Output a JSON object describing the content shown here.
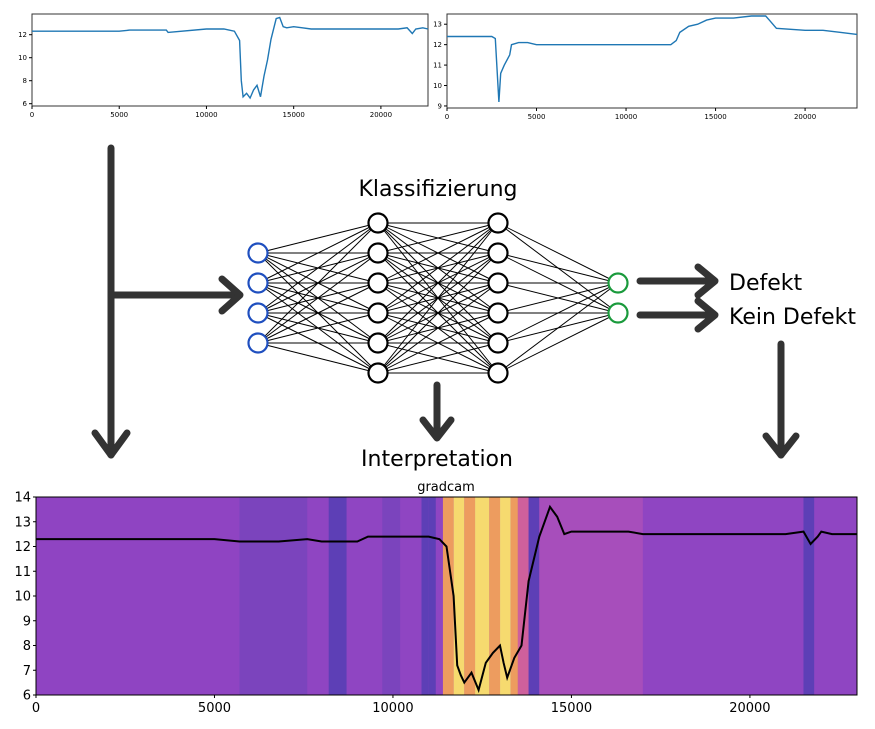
{
  "labels": {
    "classification": "Klassifizierung",
    "interpretation": "Interpretation",
    "defect": "Defekt",
    "no_defect": "Kein Defekt",
    "gradcam_title": "gradcam"
  },
  "network": {
    "input_nodes": 4,
    "hidden_layers": [
      6,
      6
    ],
    "output_nodes": 2,
    "input_color": "#1f4fbf",
    "output_color": "#1a9a3c",
    "hidden_color": "#000000"
  },
  "colors": {
    "series_line": "#1f77b4",
    "arrow": "#333333",
    "gradcam_base": "#8f45c2",
    "gradcam_hot": "#fce36a",
    "gradcam_warm": "#f2a15a",
    "gradcam_cool": "#5b3fb5"
  },
  "chart_data": [
    {
      "type": "line",
      "name_in_image": "",
      "x_ticks": [
        "0",
        "5000",
        "10000",
        "15000",
        "20000"
      ],
      "y_ticks": [
        "6",
        "8",
        "10",
        "12"
      ],
      "xlim": [
        0,
        22700
      ],
      "ylim": [
        5.8,
        13.8
      ],
      "x": [
        0,
        5000,
        5600,
        7700,
        7800,
        10000,
        11000,
        11600,
        11900,
        12000,
        12100,
        12300,
        12500,
        12700,
        12900,
        13100,
        13300,
        13500,
        13700,
        14000,
        14200,
        14400,
        14600,
        15000,
        15500,
        16000,
        17000,
        18000,
        19000,
        20000,
        21000,
        21500,
        21800,
        22000,
        22400,
        22700
      ],
      "y": [
        12.3,
        12.3,
        12.4,
        12.4,
        12.2,
        12.5,
        12.5,
        12.3,
        11.5,
        8.0,
        6.6,
        6.9,
        6.5,
        7.2,
        7.6,
        6.6,
        8.4,
        9.8,
        11.6,
        13.4,
        13.5,
        12.7,
        12.6,
        12.7,
        12.6,
        12.5,
        12.5,
        12.5,
        12.5,
        12.5,
        12.5,
        12.6,
        12.1,
        12.5,
        12.6,
        12.5
      ]
    },
    {
      "type": "line",
      "name_in_image": "",
      "x_ticks": [
        "0",
        "5000",
        "10000",
        "15000",
        "20000"
      ],
      "y_ticks": [
        "9",
        "10",
        "11",
        "12",
        "13"
      ],
      "xlim": [
        0,
        22900
      ],
      "ylim": [
        8.9,
        13.5
      ],
      "x": [
        0,
        2500,
        2700,
        2900,
        3000,
        3200,
        3500,
        3600,
        4000,
        4500,
        5000,
        8000,
        10000,
        12500,
        12800,
        13000,
        13500,
        14000,
        14500,
        15000,
        16000,
        17000,
        17800,
        18000,
        18400,
        20000,
        21000,
        22000,
        22900
      ],
      "y": [
        12.4,
        12.4,
        12.3,
        9.2,
        10.6,
        11.0,
        11.5,
        12.0,
        12.1,
        12.1,
        12.0,
        12.0,
        12.0,
        12.0,
        12.2,
        12.6,
        12.9,
        13.0,
        13.2,
        13.3,
        13.3,
        13.4,
        13.4,
        13.2,
        12.8,
        12.7,
        12.7,
        12.6,
        12.5
      ]
    },
    {
      "type": "line",
      "title": "gradcam",
      "x_ticks": [
        "0",
        "5000",
        "10000",
        "15000",
        "20000"
      ],
      "y_ticks": [
        "6",
        "7",
        "8",
        "9",
        "10",
        "11",
        "12",
        "13",
        "14"
      ],
      "xlim": [
        0,
        23000
      ],
      "ylim": [
        6,
        14
      ],
      "x": [
        0,
        5000,
        5700,
        6800,
        7600,
        8000,
        8500,
        9000,
        9300,
        10000,
        10500,
        11000,
        11300,
        11500,
        11700,
        11800,
        11900,
        12000,
        12200,
        12400,
        12600,
        12800,
        13000,
        13100,
        13200,
        13400,
        13600,
        13800,
        14100,
        14400,
        14600,
        14800,
        15000,
        15500,
        16000,
        16600,
        17000,
        18000,
        19000,
        20000,
        21000,
        21500,
        21700,
        21900,
        22000,
        22300,
        23000
      ],
      "y": [
        12.3,
        12.3,
        12.2,
        12.2,
        12.3,
        12.2,
        12.2,
        12.2,
        12.4,
        12.4,
        12.4,
        12.4,
        12.3,
        12.0,
        10.0,
        7.2,
        6.8,
        6.5,
        6.9,
        6.2,
        7.3,
        7.7,
        8.0,
        7.3,
        6.7,
        7.5,
        8.0,
        10.6,
        12.4,
        13.6,
        13.2,
        12.5,
        12.6,
        12.6,
        12.6,
        12.6,
        12.5,
        12.5,
        12.5,
        12.5,
        12.5,
        12.6,
        12.1,
        12.4,
        12.6,
        12.5,
        12.5
      ],
      "heatmap_bands": [
        {
          "from": 0,
          "to": 5700,
          "level": "base"
        },
        {
          "from": 5700,
          "to": 7600,
          "level": "cool-light"
        },
        {
          "from": 8200,
          "to": 8700,
          "level": "cool"
        },
        {
          "from": 9700,
          "to": 10200,
          "level": "cool-light"
        },
        {
          "from": 10800,
          "to": 11000,
          "level": "cool"
        },
        {
          "from": 11000,
          "to": 11200,
          "level": "cool"
        },
        {
          "from": 11400,
          "to": 11700,
          "level": "warm"
        },
        {
          "from": 11700,
          "to": 12000,
          "level": "hot"
        },
        {
          "from": 12000,
          "to": 12300,
          "level": "warm"
        },
        {
          "from": 12300,
          "to": 12700,
          "level": "hot"
        },
        {
          "from": 12700,
          "to": 13000,
          "level": "warm"
        },
        {
          "from": 13000,
          "to": 13300,
          "level": "hot"
        },
        {
          "from": 13300,
          "to": 13500,
          "level": "warm"
        },
        {
          "from": 13500,
          "to": 13800,
          "level": "pink"
        },
        {
          "from": 13800,
          "to": 14100,
          "level": "cool"
        },
        {
          "from": 14100,
          "to": 17000,
          "level": "pink-light"
        },
        {
          "from": 21500,
          "to": 21800,
          "level": "cool"
        }
      ]
    }
  ]
}
